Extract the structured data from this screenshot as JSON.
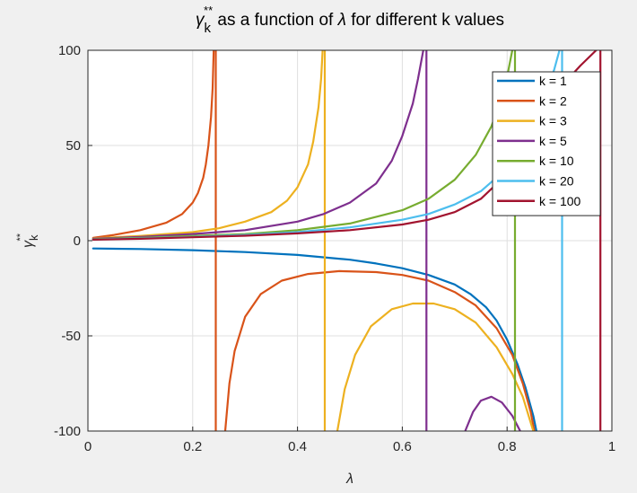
{
  "chart_data": {
    "type": "line",
    "title": {
      "gamma": "γ",
      "sup": "**",
      "sub": "k",
      "middle": " as a function of ",
      "lambda": "λ",
      "tail": " for different k values"
    },
    "xlabel": "λ",
    "ylabel": {
      "gamma": "γ",
      "sup": "**",
      "sub": "k"
    },
    "xlim": [
      0,
      1
    ],
    "ylim": [
      -100,
      100
    ],
    "xticks": [
      0,
      0.2,
      0.4,
      0.6,
      0.8,
      1
    ],
    "xtick_labels": [
      "0",
      "0.2",
      "0.4",
      "0.6",
      "0.8",
      "1"
    ],
    "yticks": [
      -100,
      -50,
      0,
      50,
      100
    ],
    "ytick_labels": [
      "-100",
      "-50",
      "0",
      "50",
      "100"
    ],
    "grid": true,
    "legend_position": "top-right",
    "series": [
      {
        "name": "k = 1",
        "color": "#0072BD",
        "segments": [
          [
            [
              0.01,
              -4.1
            ],
            [
              0.1,
              -4.4
            ],
            [
              0.2,
              -5.0
            ],
            [
              0.3,
              -6.0
            ],
            [
              0.4,
              -7.5
            ],
            [
              0.5,
              -10.0
            ],
            [
              0.55,
              -12.0
            ],
            [
              0.6,
              -14.5
            ],
            [
              0.65,
              -18.0
            ],
            [
              0.7,
              -23.0
            ],
            [
              0.73,
              -28.0
            ],
            [
              0.76,
              -35.0
            ],
            [
              0.78,
              -42.0
            ],
            [
              0.8,
              -52.0
            ],
            [
              0.82,
              -65.0
            ],
            [
              0.835,
              -77.0
            ],
            [
              0.85,
              -92.0
            ],
            [
              0.856,
              -100.0
            ]
          ]
        ]
      },
      {
        "name": "k = 2",
        "color": "#D95319",
        "segments": [
          [
            [
              0.01,
              1.5
            ],
            [
              0.05,
              3.0
            ],
            [
              0.1,
              5.5
            ],
            [
              0.15,
              9.5
            ],
            [
              0.18,
              14.0
            ],
            [
              0.2,
              20.0
            ],
            [
              0.21,
              25.0
            ],
            [
              0.22,
              33.0
            ],
            [
              0.225,
              40.0
            ],
            [
              0.23,
              50.0
            ],
            [
              0.235,
              65.0
            ],
            [
              0.238,
              80.0
            ],
            [
              0.24,
              100.0
            ]
          ],
          [
            [
              0.244,
              100.0
            ],
            [
              0.244,
              -100.0
            ]
          ],
          [
            [
              0.262,
              -100.0
            ],
            [
              0.27,
              -75.0
            ],
            [
              0.28,
              -58.0
            ],
            [
              0.3,
              -40.0
            ],
            [
              0.33,
              -28.0
            ],
            [
              0.37,
              -21.0
            ],
            [
              0.42,
              -17.5
            ],
            [
              0.48,
              -16.0
            ],
            [
              0.55,
              -16.5
            ],
            [
              0.6,
              -18.0
            ],
            [
              0.65,
              -21.0
            ],
            [
              0.7,
              -27.0
            ],
            [
              0.74,
              -34.0
            ],
            [
              0.78,
              -46.0
            ],
            [
              0.81,
              -60.0
            ],
            [
              0.83,
              -75.0
            ],
            [
              0.845,
              -90.0
            ],
            [
              0.852,
              -100.0
            ]
          ]
        ]
      },
      {
        "name": "k = 3",
        "color": "#EDB120",
        "segments": [
          [
            [
              0.01,
              1.2
            ],
            [
              0.1,
              2.5
            ],
            [
              0.2,
              4.5
            ],
            [
              0.25,
              6.5
            ],
            [
              0.3,
              10.0
            ],
            [
              0.35,
              15.0
            ],
            [
              0.38,
              21.0
            ],
            [
              0.4,
              28.0
            ],
            [
              0.42,
              40.0
            ],
            [
              0.43,
              52.0
            ],
            [
              0.44,
              70.0
            ],
            [
              0.445,
              85.0
            ],
            [
              0.448,
              100.0
            ]
          ],
          [
            [
              0.452,
              100.0
            ],
            [
              0.452,
              -100.0
            ]
          ],
          [
            [
              0.476,
              -100.0
            ],
            [
              0.49,
              -78.0
            ],
            [
              0.51,
              -60.0
            ],
            [
              0.54,
              -45.0
            ],
            [
              0.58,
              -36.0
            ],
            [
              0.62,
              -33.0
            ],
            [
              0.66,
              -33.0
            ],
            [
              0.7,
              -36.0
            ],
            [
              0.74,
              -43.0
            ],
            [
              0.78,
              -56.0
            ],
            [
              0.81,
              -70.0
            ],
            [
              0.83,
              -82.0
            ],
            [
              0.85,
              -100.0
            ]
          ]
        ]
      },
      {
        "name": "k = 5",
        "color": "#7E2F8E",
        "segments": [
          [
            [
              0.01,
              1.0
            ],
            [
              0.1,
              2.0
            ],
            [
              0.2,
              3.5
            ],
            [
              0.3,
              5.5
            ],
            [
              0.4,
              10.0
            ],
            [
              0.45,
              14.0
            ],
            [
              0.5,
              20.0
            ],
            [
              0.55,
              30.0
            ],
            [
              0.58,
              42.0
            ],
            [
              0.6,
              55.0
            ],
            [
              0.62,
              72.0
            ],
            [
              0.63,
              85.0
            ],
            [
              0.64,
              100.0
            ]
          ],
          [
            [
              0.646,
              100.0
            ],
            [
              0.646,
              -100.0
            ]
          ],
          [
            [
              0.72,
              -100.0
            ],
            [
              0.735,
              -90.0
            ],
            [
              0.75,
              -84.0
            ],
            [
              0.77,
              -82.0
            ],
            [
              0.79,
              -85.0
            ],
            [
              0.81,
              -92.0
            ],
            [
              0.825,
              -100.0
            ]
          ]
        ]
      },
      {
        "name": "k = 10",
        "color": "#77AC30",
        "segments": [
          [
            [
              0.01,
              0.8
            ],
            [
              0.1,
              1.5
            ],
            [
              0.2,
              2.5
            ],
            [
              0.3,
              3.5
            ],
            [
              0.4,
              5.5
            ],
            [
              0.5,
              9.0
            ],
            [
              0.6,
              16.0
            ],
            [
              0.65,
              22.0
            ],
            [
              0.7,
              32.0
            ],
            [
              0.74,
              45.0
            ],
            [
              0.77,
              60.0
            ],
            [
              0.79,
              75.0
            ],
            [
              0.8,
              86.0
            ],
            [
              0.81,
              100.0
            ]
          ],
          [
            [
              0.815,
              100.0
            ],
            [
              0.815,
              -100.0
            ]
          ]
        ]
      },
      {
        "name": "k = 20",
        "color": "#4DBEEE",
        "segments": [
          [
            [
              0.01,
              0.6
            ],
            [
              0.1,
              1.2
            ],
            [
              0.2,
              2.0
            ],
            [
              0.3,
              3.0
            ],
            [
              0.4,
              4.5
            ],
            [
              0.5,
              7.0
            ],
            [
              0.6,
              11.0
            ],
            [
              0.65,
              14.0
            ],
            [
              0.7,
              19.0
            ],
            [
              0.75,
              26.0
            ],
            [
              0.8,
              38.0
            ],
            [
              0.83,
              50.0
            ],
            [
              0.85,
              60.0
            ],
            [
              0.87,
              75.0
            ],
            [
              0.89,
              90.0
            ],
            [
              0.9,
              100.0
            ]
          ],
          [
            [
              0.905,
              100.0
            ],
            [
              0.905,
              -100.0
            ]
          ]
        ]
      },
      {
        "name": "k = 100",
        "color": "#A2142F",
        "segments": [
          [
            [
              0.01,
              0.5
            ],
            [
              0.1,
              1.0
            ],
            [
              0.2,
              1.8
            ],
            [
              0.3,
              2.6
            ],
            [
              0.4,
              3.8
            ],
            [
              0.5,
              5.5
            ],
            [
              0.6,
              8.5
            ],
            [
              0.65,
              11.0
            ],
            [
              0.7,
              15.0
            ],
            [
              0.75,
              22.0
            ],
            [
              0.8,
              35.0
            ],
            [
              0.83,
              48.0
            ],
            [
              0.86,
              62.0
            ],
            [
              0.9,
              80.0
            ],
            [
              0.94,
              92.0
            ],
            [
              0.97,
              100.0
            ]
          ],
          [
            [
              0.978,
              100.0
            ],
            [
              0.978,
              -100.0
            ]
          ]
        ]
      }
    ]
  }
}
